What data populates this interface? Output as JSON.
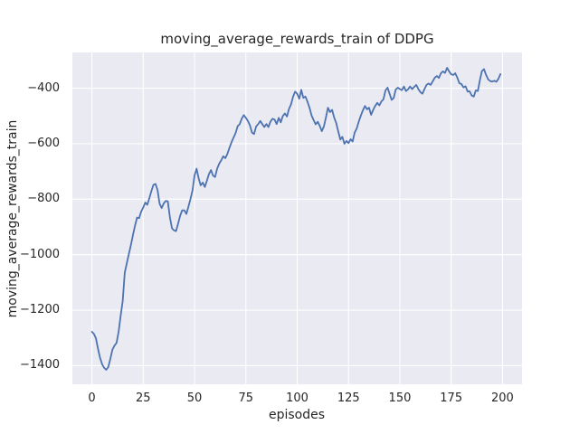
{
  "chart_data": {
    "type": "line",
    "title": "moving_average_rewards_train of DDPG",
    "xlabel": "episodes",
    "ylabel": "moving_average_rewards_train",
    "legend": null,
    "grid": true,
    "xlim": [
      -9.5,
      209.5
    ],
    "ylim": [
      -1467,
      -271
    ],
    "xticks": [
      0,
      25,
      50,
      75,
      100,
      125,
      150,
      175,
      200
    ],
    "xtick_labels": [
      "0",
      "25",
      "50",
      "75",
      "100",
      "125",
      "150",
      "175",
      "200"
    ],
    "yticks": [
      -400,
      -600,
      -800,
      -1000,
      -1200,
      -1400
    ],
    "ytick_labels": [
      "−400",
      "−600",
      "−800",
      "−1000",
      "−1200",
      "−1400"
    ],
    "line_color": "#4c72b0",
    "plot_bg_color": "#eaeaf2",
    "grid_color": "#ffffff",
    "text_color": "#262626",
    "x": {
      "start": 0,
      "step": 1,
      "count": 200
    },
    "y": [
      -1278,
      -1285,
      -1302,
      -1340,
      -1372,
      -1395,
      -1408,
      -1415,
      -1405,
      -1375,
      -1342,
      -1328,
      -1318,
      -1278,
      -1222,
      -1168,
      -1065,
      -1032,
      -998,
      -965,
      -930,
      -896,
      -866,
      -868,
      -845,
      -830,
      -812,
      -820,
      -796,
      -770,
      -748,
      -745,
      -768,
      -816,
      -832,
      -815,
      -806,
      -808,
      -865,
      -905,
      -912,
      -915,
      -888,
      -860,
      -840,
      -840,
      -853,
      -828,
      -800,
      -768,
      -715,
      -690,
      -725,
      -750,
      -740,
      -756,
      -734,
      -710,
      -695,
      -715,
      -720,
      -690,
      -672,
      -660,
      -645,
      -652,
      -637,
      -615,
      -595,
      -578,
      -562,
      -537,
      -529,
      -510,
      -497,
      -507,
      -518,
      -534,
      -560,
      -565,
      -538,
      -529,
      -518,
      -529,
      -540,
      -529,
      -540,
      -520,
      -510,
      -513,
      -529,
      -507,
      -523,
      -500,
      -491,
      -502,
      -475,
      -458,
      -430,
      -412,
      -420,
      -438,
      -406,
      -435,
      -430,
      -448,
      -470,
      -498,
      -515,
      -530,
      -521,
      -536,
      -555,
      -538,
      -505,
      -470,
      -486,
      -478,
      -505,
      -525,
      -556,
      -585,
      -575,
      -600,
      -590,
      -598,
      -584,
      -592,
      -560,
      -545,
      -520,
      -498,
      -480,
      -464,
      -476,
      -470,
      -496,
      -478,
      -464,
      -453,
      -462,
      -448,
      -440,
      -408,
      -398,
      -420,
      -442,
      -435,
      -405,
      -398,
      -403,
      -407,
      -394,
      -410,
      -404,
      -394,
      -403,
      -395,
      -388,
      -403,
      -414,
      -420,
      -403,
      -388,
      -383,
      -388,
      -375,
      -362,
      -356,
      -363,
      -346,
      -339,
      -345,
      -326,
      -339,
      -350,
      -352,
      -346,
      -362,
      -382,
      -385,
      -397,
      -393,
      -412,
      -411,
      -426,
      -430,
      -408,
      -410,
      -370,
      -338,
      -331,
      -352,
      -368,
      -374,
      -376,
      -373,
      -377,
      -366,
      -349
    ]
  }
}
